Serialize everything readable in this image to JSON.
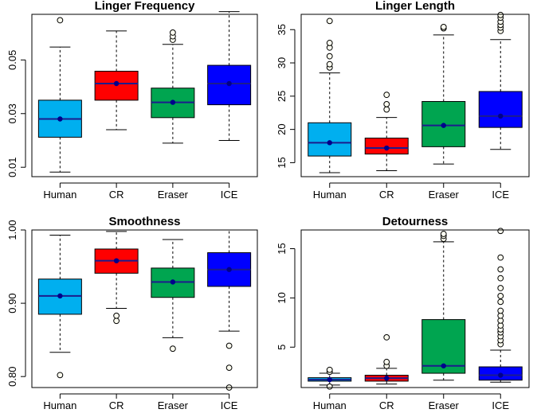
{
  "chart_data": [
    {
      "type": "boxplot",
      "title": "Linger Frequency",
      "categories": [
        "Human",
        "CR",
        "Eraser",
        "ICE"
      ],
      "ylim": [
        0.0065,
        0.067
      ],
      "yticks": [
        0.01,
        0.03,
        0.05
      ],
      "ytick_labels": [
        "0.01",
        "0.03",
        "0.05"
      ],
      "boxes": [
        {
          "min": 0.0082,
          "q1": 0.0212,
          "median": 0.028,
          "q3": 0.035,
          "max": 0.0548,
          "mean": 0.028,
          "outliers": [
            0.0648
          ]
        },
        {
          "min": 0.024,
          "q1": 0.035,
          "median": 0.0412,
          "q3": 0.0458,
          "max": 0.0608,
          "mean": 0.0412,
          "outliers": []
        },
        {
          "min": 0.019,
          "q1": 0.0285,
          "median": 0.0342,
          "q3": 0.0395,
          "max": 0.0558,
          "mean": 0.0342,
          "outliers": [
            0.0575,
            0.0588,
            0.0602
          ]
        },
        {
          "min": 0.02,
          "q1": 0.0333,
          "median": 0.0412,
          "q3": 0.048,
          "max": 0.068,
          "mean": 0.0412,
          "outliers": []
        }
      ]
    },
    {
      "type": "boxplot",
      "title": "Linger Length",
      "categories": [
        "Human",
        "CR",
        "Eraser",
        "ICE"
      ],
      "ylim": [
        12.9,
        37.3
      ],
      "yticks": [
        15,
        20,
        25,
        30,
        35
      ],
      "ytick_labels": [
        "15",
        "20",
        "25",
        "30",
        "35"
      ],
      "boxes": [
        {
          "min": 13.5,
          "q1": 16.0,
          "median": 18.0,
          "q3": 21.0,
          "max": 28.5,
          "mean": 18.0,
          "outliers": [
            29.3,
            29.8,
            31.0,
            32.3,
            33.0,
            36.3
          ]
        },
        {
          "min": 13.8,
          "q1": 16.3,
          "median": 17.2,
          "q3": 18.7,
          "max": 21.8,
          "mean": 17.2,
          "outliers": [
            23.0,
            23.8,
            25.2
          ]
        },
        {
          "min": 14.8,
          "q1": 17.4,
          "median": 20.6,
          "q3": 24.2,
          "max": 34.2,
          "mean": 20.6,
          "outliers": [
            35.2,
            35.4
          ]
        },
        {
          "min": 17.0,
          "q1": 20.3,
          "median": 22.0,
          "q3": 25.7,
          "max": 33.5,
          "mean": 22.0,
          "outliers": [
            34.8,
            35.3,
            35.7,
            36.2,
            36.8,
            37.2
          ]
        }
      ]
    },
    {
      "type": "boxplot",
      "title": "Smoothness",
      "categories": [
        "Human",
        "CR",
        "Eraser",
        "ICE"
      ],
      "ylim": [
        0.785,
        1.0
      ],
      "yticks": [
        0.8,
        0.9,
        1.0
      ],
      "ytick_labels": [
        "0.80",
        "0.90",
        "1.00"
      ],
      "boxes": [
        {
          "min": 0.833,
          "q1": 0.885,
          "median": 0.91,
          "q3": 0.933,
          "max": 0.993,
          "mean": 0.91,
          "outliers": [
            0.802
          ]
        },
        {
          "min": 0.893,
          "q1": 0.941,
          "median": 0.958,
          "q3": 0.974,
          "max": 0.998,
          "mean": 0.958,
          "outliers": [
            0.876,
            0.883
          ]
        },
        {
          "min": 0.853,
          "q1": 0.908,
          "median": 0.929,
          "q3": 0.948,
          "max": 0.987,
          "mean": 0.929,
          "outliers": [
            0.838
          ]
        },
        {
          "min": 0.862,
          "q1": 0.923,
          "median": 0.946,
          "q3": 0.969,
          "max": 1.0,
          "mean": 0.946,
          "outliers": [
            0.785,
            0.812,
            0.842
          ]
        }
      ]
    },
    {
      "type": "boxplot",
      "title": "Detourness",
      "categories": [
        "Human",
        "CR",
        "Eraser",
        "ICE"
      ],
      "ylim": [
        0.9,
        16.9
      ],
      "yticks": [
        5,
        10,
        15
      ],
      "ytick_labels": [
        "5",
        "10",
        "15"
      ],
      "boxes": [
        {
          "min": 1.15,
          "q1": 1.55,
          "median": 1.7,
          "q3": 1.9,
          "max": 2.35,
          "mean": 1.7,
          "outliers": [
            1.0,
            2.5,
            2.7
          ]
        },
        {
          "min": 1.25,
          "q1": 1.55,
          "median": 1.85,
          "q3": 2.15,
          "max": 2.85,
          "mean": 1.85,
          "outliers": [
            3.1,
            3.5,
            6.0
          ]
        },
        {
          "min": 1.65,
          "q1": 2.35,
          "median": 3.1,
          "q3": 7.8,
          "max": 15.7,
          "mean": 3.1,
          "outliers": [
            16.0,
            16.3,
            16.5
          ]
        },
        {
          "min": 1.45,
          "q1": 1.65,
          "median": 2.15,
          "q3": 3.0,
          "max": 4.7,
          "mean": 2.15,
          "outliers": [
            5.3,
            5.7,
            6.1,
            6.5,
            6.8,
            7.2,
            7.7,
            8.2,
            8.7,
            9.6,
            10.2,
            11.0,
            12.0,
            12.9,
            14.1,
            16.8
          ]
        }
      ]
    }
  ],
  "colors": {
    "Human": "#00AFEF",
    "CR": "#FF0000",
    "Eraser": "#00A550",
    "ICE": "#0000FF",
    "median_line": "#1C1C8C",
    "mean_dot": "#00008B",
    "outlier_fill": "#FFFFF0"
  }
}
